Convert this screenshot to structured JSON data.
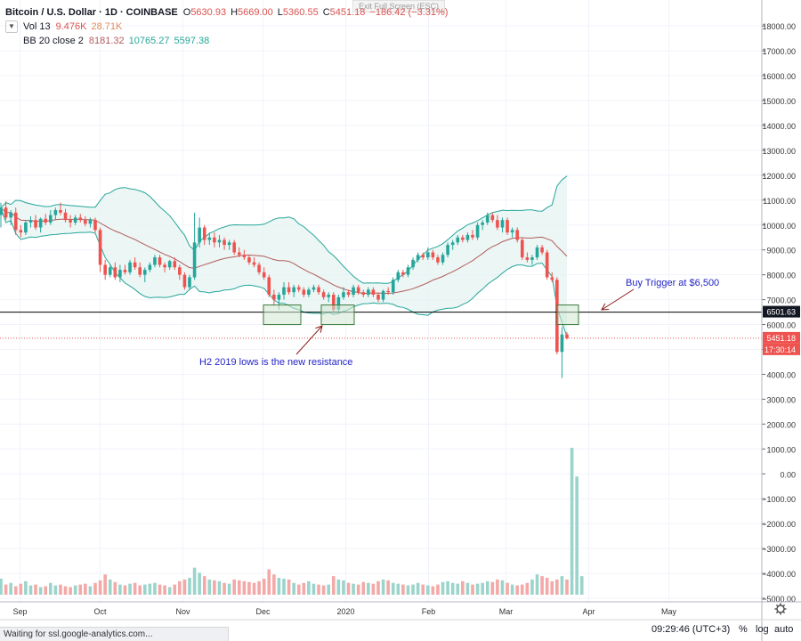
{
  "legend": {
    "symbol": "Bitcoin / U.S. Dollar · 1D · COINBASE",
    "ohlc": {
      "o_label": "O",
      "o": "5630.93",
      "h_label": "H",
      "h": "5669.00",
      "l_label": "L",
      "l": "5360.55",
      "c_label": "C",
      "c": "5451.18",
      "change": "−186.42 (−3.31%)"
    },
    "vol": {
      "label": "Vol 13",
      "v1": "9.476K",
      "v2": "28.71K"
    },
    "bb": {
      "label": "BB 20 close 2",
      "mid": "8181.32",
      "upper": "10765.27",
      "lower": "5597.38"
    },
    "collapse_icon": "chevron-down-icon"
  },
  "exit_fullscreen": "Exit Full Screen (ESC)",
  "annotations": {
    "buy_trigger": "Buy Trigger at $6,500",
    "resistance": "H2 2019 lows is the new resistance"
  },
  "price_tags": {
    "trigger": "6501.63",
    "last": "5451.18",
    "countdown": "17:30:14"
  },
  "status_bar": "Waiting for ssl.google-analytics.com...",
  "bottom_bar": {
    "time": "09:29:46 (UTC+3)",
    "percent": "%",
    "log": "log",
    "auto": "auto",
    "settings_icon": "gear-icon"
  },
  "colors": {
    "up": "#26a69a",
    "down": "#ef5350",
    "bb_fill": "#e6f4f3",
    "bb_band": "#26a69a",
    "bb_mid": "#b35c5c",
    "annotation": "#2424c8",
    "arrow": "#8b1a1a",
    "box": "#cfe8cf"
  },
  "chart_data": {
    "type": "candlestick",
    "axis": {
      "y_ticks": [
        "18000.00",
        "17000.00",
        "16000.00",
        "15000.00",
        "14000.00",
        "13000.00",
        "12000.00",
        "11000.00",
        "10000.00",
        "9000.00",
        "8000.00",
        "7000.00",
        "6000.00",
        "5000.00",
        "4000.00",
        "3000.00",
        "2000.00",
        "1000.00",
        "0.00",
        "−1000.00",
        "−2000.00",
        "−3000.00",
        "−4000.00",
        "−5000.00"
      ],
      "y_values": [
        18000,
        17000,
        16000,
        15000,
        14000,
        13000,
        12000,
        11000,
        10000,
        9000,
        8000,
        7000,
        6000,
        5000,
        4000,
        3000,
        2000,
        1000,
        0,
        -1000,
        -2000,
        -3000,
        -4000,
        -5000
      ],
      "x_labels": [
        "Sep",
        "Oct",
        "Nov",
        "Dec",
        "2020",
        "Feb",
        "Mar",
        "Apr",
        "May"
      ],
      "x_label_days": [
        7,
        37,
        68,
        98,
        129,
        160,
        189,
        220,
        250
      ]
    },
    "horizontal_line": 6500,
    "last_price": 5451.18,
    "candles_sep_to_mar": [
      {
        "o": 10400,
        "h": 10900,
        "l": 9900,
        "c": 10700
      },
      {
        "o": 10700,
        "h": 10950,
        "l": 10200,
        "c": 10300
      },
      {
        "o": 10300,
        "h": 10600,
        "l": 10000,
        "c": 10500
      },
      {
        "o": 10500,
        "h": 10700,
        "l": 9600,
        "c": 9800
      },
      {
        "o": 9800,
        "h": 10000,
        "l": 9500,
        "c": 9700
      },
      {
        "o": 9700,
        "h": 10200,
        "l": 9600,
        "c": 10100
      },
      {
        "o": 10100,
        "h": 10350,
        "l": 9900,
        "c": 10200
      },
      {
        "o": 10200,
        "h": 10400,
        "l": 9800,
        "c": 9900
      },
      {
        "o": 9900,
        "h": 10300,
        "l": 9700,
        "c": 10250
      },
      {
        "o": 10250,
        "h": 10450,
        "l": 10000,
        "c": 10100
      },
      {
        "o": 10100,
        "h": 10600,
        "l": 10000,
        "c": 10400
      },
      {
        "o": 10400,
        "h": 10700,
        "l": 10200,
        "c": 10600
      },
      {
        "o": 10600,
        "h": 10900,
        "l": 10400,
        "c": 10500
      },
      {
        "o": 10500,
        "h": 10650,
        "l": 10100,
        "c": 10200
      },
      {
        "o": 10200,
        "h": 10400,
        "l": 9900,
        "c": 10100
      },
      {
        "o": 10100,
        "h": 10400,
        "l": 10000,
        "c": 10300
      },
      {
        "o": 10300,
        "h": 10450,
        "l": 10100,
        "c": 10200
      },
      {
        "o": 10200,
        "h": 10350,
        "l": 9950,
        "c": 10050
      },
      {
        "o": 10050,
        "h": 10300,
        "l": 9900,
        "c": 10200
      },
      {
        "o": 10200,
        "h": 10300,
        "l": 9700,
        "c": 9800
      },
      {
        "o": 9800,
        "h": 9900,
        "l": 8100,
        "c": 8400
      },
      {
        "o": 8400,
        "h": 8600,
        "l": 7800,
        "c": 8000
      },
      {
        "o": 8000,
        "h": 8400,
        "l": 7900,
        "c": 8300
      },
      {
        "o": 8300,
        "h": 8500,
        "l": 7800,
        "c": 7900
      },
      {
        "o": 7900,
        "h": 8400,
        "l": 7700,
        "c": 8200
      },
      {
        "o": 8200,
        "h": 8400,
        "l": 8000,
        "c": 8100
      },
      {
        "o": 8100,
        "h": 8600,
        "l": 8000,
        "c": 8500
      },
      {
        "o": 8500,
        "h": 8700,
        "l": 8200,
        "c": 8300
      },
      {
        "o": 8300,
        "h": 8500,
        "l": 7900,
        "c": 8000
      },
      {
        "o": 8000,
        "h": 8300,
        "l": 7700,
        "c": 8200
      },
      {
        "o": 8200,
        "h": 8500,
        "l": 8100,
        "c": 8400
      },
      {
        "o": 8400,
        "h": 8800,
        "l": 8300,
        "c": 8700
      },
      {
        "o": 8700,
        "h": 8800,
        "l": 8300,
        "c": 8400
      },
      {
        "o": 8400,
        "h": 8500,
        "l": 8100,
        "c": 8300
      },
      {
        "o": 8300,
        "h": 8600,
        "l": 8200,
        "c": 8550
      },
      {
        "o": 8550,
        "h": 8700,
        "l": 8200,
        "c": 8300
      },
      {
        "o": 8300,
        "h": 8400,
        "l": 7800,
        "c": 8000
      },
      {
        "o": 8000,
        "h": 8100,
        "l": 7400,
        "c": 7500
      },
      {
        "o": 7500,
        "h": 8000,
        "l": 7400,
        "c": 7900
      },
      {
        "o": 7900,
        "h": 10500,
        "l": 7800,
        "c": 9300
      },
      {
        "o": 9300,
        "h": 10300,
        "l": 9100,
        "c": 9900
      },
      {
        "o": 9900,
        "h": 10000,
        "l": 9200,
        "c": 9400
      },
      {
        "o": 9400,
        "h": 9700,
        "l": 9200,
        "c": 9500
      },
      {
        "o": 9500,
        "h": 9700,
        "l": 9100,
        "c": 9300
      },
      {
        "o": 9300,
        "h": 9600,
        "l": 9100,
        "c": 9400
      },
      {
        "o": 9400,
        "h": 9500,
        "l": 9000,
        "c": 9200
      },
      {
        "o": 9200,
        "h": 9400,
        "l": 9000,
        "c": 9300
      },
      {
        "o": 9300,
        "h": 9400,
        "l": 8800,
        "c": 8900
      },
      {
        "o": 8900,
        "h": 9100,
        "l": 8700,
        "c": 8800
      },
      {
        "o": 8800,
        "h": 9000,
        "l": 8600,
        "c": 8700
      },
      {
        "o": 8700,
        "h": 8800,
        "l": 8400,
        "c": 8500
      },
      {
        "o": 8500,
        "h": 8700,
        "l": 8300,
        "c": 8400
      },
      {
        "o": 8400,
        "h": 8500,
        "l": 8000,
        "c": 8100
      },
      {
        "o": 8100,
        "h": 8300,
        "l": 7800,
        "c": 7900
      },
      {
        "o": 7900,
        "h": 8000,
        "l": 7100,
        "c": 7200
      },
      {
        "o": 7200,
        "h": 7400,
        "l": 6800,
        "c": 7000
      },
      {
        "o": 7000,
        "h": 7300,
        "l": 6600,
        "c": 7200
      },
      {
        "o": 7200,
        "h": 7700,
        "l": 7000,
        "c": 7500
      },
      {
        "o": 7500,
        "h": 7700,
        "l": 7200,
        "c": 7300
      },
      {
        "o": 7300,
        "h": 7600,
        "l": 7100,
        "c": 7500
      },
      {
        "o": 7500,
        "h": 7600,
        "l": 7300,
        "c": 7400
      },
      {
        "o": 7400,
        "h": 7500,
        "l": 7100,
        "c": 7200
      },
      {
        "o": 7200,
        "h": 7500,
        "l": 7100,
        "c": 7400
      },
      {
        "o": 7400,
        "h": 7600,
        "l": 7300,
        "c": 7500
      },
      {
        "o": 7500,
        "h": 7600,
        "l": 7200,
        "c": 7300
      },
      {
        "o": 7300,
        "h": 7400,
        "l": 7000,
        "c": 7100
      },
      {
        "o": 7100,
        "h": 7300,
        "l": 6900,
        "c": 7200
      },
      {
        "o": 7200,
        "h": 7300,
        "l": 6500,
        "c": 6600
      },
      {
        "o": 6600,
        "h": 7200,
        "l": 6500,
        "c": 7100
      },
      {
        "o": 7100,
        "h": 7500,
        "l": 7000,
        "c": 7300
      },
      {
        "o": 7300,
        "h": 7400,
        "l": 7100,
        "c": 7200
      },
      {
        "o": 7200,
        "h": 7600,
        "l": 7100,
        "c": 7500
      },
      {
        "o": 7500,
        "h": 7600,
        "l": 7200,
        "c": 7300
      },
      {
        "o": 7300,
        "h": 7400,
        "l": 7100,
        "c": 7200
      },
      {
        "o": 7200,
        "h": 7500,
        "l": 7100,
        "c": 7400
      },
      {
        "o": 7400,
        "h": 7500,
        "l": 7100,
        "c": 7200
      },
      {
        "o": 7200,
        "h": 7300,
        "l": 6900,
        "c": 7000
      },
      {
        "o": 7000,
        "h": 7400,
        "l": 6900,
        "c": 7350
      },
      {
        "o": 7350,
        "h": 7500,
        "l": 7200,
        "c": 7300
      },
      {
        "o": 7300,
        "h": 7900,
        "l": 7200,
        "c": 7800
      },
      {
        "o": 7800,
        "h": 8200,
        "l": 7700,
        "c": 8100
      },
      {
        "o": 8100,
        "h": 8200,
        "l": 7900,
        "c": 8000
      },
      {
        "o": 8000,
        "h": 8400,
        "l": 7900,
        "c": 8300
      },
      {
        "o": 8300,
        "h": 8700,
        "l": 8200,
        "c": 8600
      },
      {
        "o": 8600,
        "h": 8900,
        "l": 8500,
        "c": 8800
      },
      {
        "o": 8800,
        "h": 8900,
        "l": 8600,
        "c": 8700
      },
      {
        "o": 8700,
        "h": 9100,
        "l": 8600,
        "c": 8900
      },
      {
        "o": 8900,
        "h": 9000,
        "l": 8600,
        "c": 8700
      },
      {
        "o": 8700,
        "h": 8800,
        "l": 8400,
        "c": 8500
      },
      {
        "o": 8500,
        "h": 8900,
        "l": 8400,
        "c": 8800
      },
      {
        "o": 8800,
        "h": 9300,
        "l": 8700,
        "c": 9200
      },
      {
        "o": 9200,
        "h": 9400,
        "l": 9000,
        "c": 9300
      },
      {
        "o": 9300,
        "h": 9600,
        "l": 9200,
        "c": 9500
      },
      {
        "o": 9500,
        "h": 9600,
        "l": 9300,
        "c": 9400
      },
      {
        "o": 9400,
        "h": 9700,
        "l": 9300,
        "c": 9600
      },
      {
        "o": 9600,
        "h": 9800,
        "l": 9400,
        "c": 9500
      },
      {
        "o": 9500,
        "h": 10100,
        "l": 9400,
        "c": 10000
      },
      {
        "o": 10000,
        "h": 10200,
        "l": 9800,
        "c": 10100
      },
      {
        "o": 10100,
        "h": 10500,
        "l": 10000,
        "c": 10400
      },
      {
        "o": 10400,
        "h": 10500,
        "l": 10100,
        "c": 10200
      },
      {
        "o": 10200,
        "h": 10400,
        "l": 9800,
        "c": 9900
      },
      {
        "o": 9900,
        "h": 10300,
        "l": 9700,
        "c": 10200
      },
      {
        "o": 10200,
        "h": 10300,
        "l": 9600,
        "c": 9700
      },
      {
        "o": 9700,
        "h": 9900,
        "l": 9500,
        "c": 9800
      },
      {
        "o": 9800,
        "h": 9900,
        "l": 9300,
        "c": 9400
      },
      {
        "o": 9400,
        "h": 9500,
        "l": 8600,
        "c": 8700
      },
      {
        "o": 8700,
        "h": 8900,
        "l": 8500,
        "c": 8600
      },
      {
        "o": 8600,
        "h": 8800,
        "l": 8400,
        "c": 8700
      },
      {
        "o": 8700,
        "h": 9200,
        "l": 8600,
        "c": 9100
      },
      {
        "o": 9100,
        "h": 9200,
        "l": 8800,
        "c": 8900
      },
      {
        "o": 8900,
        "h": 9000,
        "l": 7800,
        "c": 7900
      },
      {
        "o": 7900,
        "h": 8100,
        "l": 7700,
        "c": 7800
      },
      {
        "o": 7800,
        "h": 7900,
        "l": 4800,
        "c": 4900
      },
      {
        "o": 4900,
        "h": 5900,
        "l": 3850,
        "c": 5600
      },
      {
        "o": 5600,
        "h": 5700,
        "l": 5400,
        "c": 5450
      }
    ],
    "volumes_k": [
      95,
      60,
      70,
      50,
      65,
      80,
      55,
      60,
      45,
      50,
      70,
      55,
      60,
      50,
      45,
      55,
      60,
      65,
      50,
      70,
      85,
      120,
      90,
      75,
      60,
      55,
      65,
      70,
      55,
      60,
      65,
      70,
      60,
      55,
      45,
      60,
      80,
      90,
      100,
      160,
      130,
      110,
      90,
      85,
      80,
      70,
      65,
      90,
      85,
      80,
      75,
      70,
      80,
      95,
      150,
      120,
      100,
      95,
      90,
      70,
      60,
      70,
      80,
      65,
      60,
      55,
      60,
      110,
      90,
      85,
      70,
      65,
      60,
      75,
      70,
      65,
      80,
      90,
      85,
      70,
      65,
      60,
      55,
      60,
      70,
      60,
      55,
      50,
      60,
      75,
      80,
      70,
      65,
      80,
      70,
      60,
      65,
      70,
      80,
      75,
      90,
      85,
      70,
      60,
      55,
      60,
      70,
      90,
      120,
      110,
      100,
      80,
      90,
      110,
      90,
      870,
      700,
      110
    ]
  }
}
